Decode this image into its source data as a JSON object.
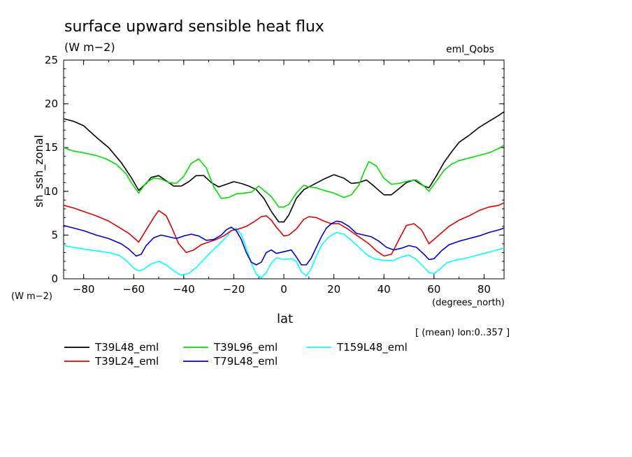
{
  "chart_data": {
    "type": "line",
    "title": "surface upward sensible heat flux",
    "units_label": "(W m−2)",
    "experiment_label": "eml_Qobs",
    "ylabel": "sh_ssh_zonal",
    "y_units": "(W m−2)",
    "xlabel": "lat",
    "x_units": "(degrees_north)",
    "subtitle_note": "[ (mean) lon:0..357 ]",
    "xlim": [
      -88,
      88
    ],
    "ylim": [
      0,
      25
    ],
    "x_ticks": [
      -80,
      -60,
      -40,
      -20,
      0,
      20,
      40,
      60,
      80
    ],
    "y_ticks": [
      0,
      5,
      10,
      15,
      20,
      25
    ],
    "x_tick_labels": [
      "−80",
      "−60",
      "−40",
      "−20",
      "0",
      "20",
      "40",
      "60",
      "80"
    ],
    "y_tick_labels": [
      "0",
      "5",
      "10",
      "15",
      "20",
      "25"
    ],
    "series": [
      {
        "name": "T39L48_eml",
        "color": "#000000",
        "x": [
          -88,
          -84,
          -80,
          -75,
          -70,
          -65,
          -61,
          -58,
          -55,
          -53,
          -50,
          -47,
          -44,
          -41,
          -38,
          -35,
          -32,
          -29,
          -26,
          -23,
          -20,
          -17,
          -14,
          -11,
          -8,
          -5,
          -2,
          0,
          2,
          5,
          8,
          12,
          16,
          20,
          22,
          24,
          27,
          30,
          33,
          36,
          40,
          43,
          46,
          49,
          52,
          56,
          58,
          61,
          64,
          67,
          70,
          74,
          78,
          82,
          86,
          88
        ],
        "y": [
          18.3,
          18.0,
          17.5,
          16.2,
          15.0,
          13.3,
          11.6,
          10.1,
          10.9,
          11.6,
          11.8,
          11.2,
          10.6,
          10.6,
          11.1,
          11.8,
          11.8,
          11.0,
          10.5,
          10.8,
          11.1,
          10.9,
          10.6,
          10.2,
          9.2,
          7.7,
          6.5,
          6.5,
          7.3,
          9.2,
          10.2,
          10.8,
          11.4,
          11.9,
          11.7,
          11.5,
          10.9,
          11.0,
          11.3,
          10.6,
          9.6,
          9.6,
          10.3,
          11.0,
          11.3,
          10.6,
          10.4,
          11.8,
          13.3,
          14.5,
          15.6,
          16.4,
          17.3,
          18.0,
          18.7,
          19.1
        ]
      },
      {
        "name": "T39L96_eml",
        "color": "#00dd00",
        "x": [
          -88,
          -84,
          -80,
          -75,
          -71,
          -67,
          -63,
          -61,
          -58,
          -55,
          -52,
          -49,
          -46,
          -43,
          -40,
          -37,
          -34,
          -31,
          -28,
          -25,
          -22,
          -19,
          -16,
          -13,
          -10,
          -8,
          -5,
          -2,
          0,
          2,
          5,
          8,
          10,
          13,
          16,
          20,
          24,
          27,
          30,
          32,
          34,
          37,
          40,
          43,
          46,
          50,
          53,
          56,
          58,
          61,
          64,
          67,
          70,
          74,
          78,
          82,
          86,
          88
        ],
        "y": [
          15.0,
          14.6,
          14.4,
          14.1,
          13.7,
          13.1,
          12.0,
          11.0,
          9.8,
          11.0,
          11.5,
          11.4,
          11.0,
          10.9,
          11.7,
          13.2,
          13.7,
          12.7,
          10.5,
          9.2,
          9.3,
          9.7,
          9.8,
          9.9,
          10.6,
          10.1,
          9.4,
          8.2,
          8.2,
          8.5,
          9.8,
          10.7,
          10.5,
          10.4,
          10.1,
          9.8,
          9.3,
          9.6,
          10.7,
          12.2,
          13.4,
          12.9,
          11.5,
          10.8,
          10.9,
          11.2,
          11.3,
          10.6,
          10.0,
          11.2,
          12.4,
          13.1,
          13.5,
          13.8,
          14.1,
          14.4,
          14.9,
          15.3
        ]
      },
      {
        "name": "T159L48_eml",
        "color": "#00ffff",
        "x": [
          -88,
          -84,
          -80,
          -75,
          -70,
          -66,
          -63,
          -60,
          -58,
          -56,
          -53,
          -50,
          -47,
          -44,
          -41,
          -38,
          -35,
          -32,
          -29,
          -26,
          -23,
          -21,
          -19,
          -17,
          -15,
          -13,
          -11,
          -9,
          -7,
          -5,
          -3,
          0,
          3,
          5,
          7,
          9,
          11,
          13,
          15,
          18,
          21,
          24,
          27,
          30,
          33,
          36,
          40,
          44,
          47,
          50,
          53,
          56,
          58,
          60,
          62,
          65,
          68,
          72,
          76,
          80,
          84,
          88
        ],
        "y": [
          3.8,
          3.6,
          3.4,
          3.2,
          3.0,
          2.7,
          2.1,
          1.2,
          0.9,
          1.1,
          1.7,
          2.0,
          1.6,
          0.9,
          0.4,
          0.6,
          1.3,
          2.2,
          3.1,
          3.9,
          4.8,
          5.5,
          5.8,
          5.1,
          3.5,
          1.8,
          0.5,
          0.1,
          0.7,
          1.8,
          2.4,
          2.2,
          2.3,
          2.0,
          0.8,
          0.3,
          1.2,
          2.6,
          3.8,
          4.8,
          5.3,
          5.1,
          4.4,
          3.6,
          2.8,
          2.3,
          2.1,
          2.1,
          2.5,
          2.7,
          2.2,
          1.3,
          0.7,
          0.6,
          1.0,
          1.8,
          2.1,
          2.3,
          2.6,
          2.9,
          3.2,
          3.5
        ]
      },
      {
        "name": "T39L24_eml",
        "color": "#dd0000",
        "x": [
          -88,
          -84,
          -80,
          -75,
          -70,
          -66,
          -62,
          -58,
          -55,
          -52,
          -50,
          -47,
          -45,
          -42,
          -39,
          -36,
          -33,
          -30,
          -27,
          -24,
          -21,
          -18,
          -15,
          -12,
          -9,
          -7,
          -5,
          -3,
          0,
          2,
          5,
          8,
          10,
          13,
          16,
          19,
          22,
          25,
          28,
          31,
          34,
          37,
          40,
          43,
          46,
          49,
          52,
          55,
          58,
          62,
          66,
          70,
          74,
          78,
          82,
          86,
          88
        ],
        "y": [
          8.4,
          8.1,
          7.7,
          7.2,
          6.6,
          5.9,
          5.2,
          4.2,
          5.6,
          7.0,
          7.8,
          7.2,
          6.0,
          4.0,
          3.0,
          3.3,
          3.9,
          4.2,
          4.5,
          4.9,
          5.5,
          5.7,
          6.0,
          6.5,
          7.1,
          7.2,
          6.7,
          5.9,
          4.9,
          5.0,
          5.7,
          6.8,
          7.1,
          7.0,
          6.6,
          6.3,
          6.3,
          5.8,
          5.2,
          4.6,
          4.0,
          3.2,
          2.6,
          2.8,
          4.5,
          6.1,
          6.3,
          5.6,
          4.0,
          5.0,
          6.0,
          6.7,
          7.2,
          7.8,
          8.2,
          8.4,
          8.7
        ]
      },
      {
        "name": "T79L48_eml",
        "color": "#0000cc",
        "x": [
          -88,
          -84,
          -80,
          -75,
          -70,
          -65,
          -62,
          -59,
          -57,
          -55,
          -52,
          -49,
          -46,
          -43,
          -40,
          -37,
          -34,
          -31,
          -28,
          -25,
          -23,
          -21,
          -19,
          -17,
          -15,
          -13,
          -11,
          -9,
          -7,
          -5,
          -3,
          0,
          3,
          5,
          7,
          9,
          11,
          13,
          15,
          17,
          19,
          21,
          23,
          26,
          29,
          32,
          35,
          38,
          41,
          44,
          47,
          50,
          53,
          56,
          58,
          60,
          63,
          66,
          70,
          74,
          78,
          82,
          86,
          88
        ],
        "y": [
          6.1,
          5.8,
          5.5,
          5.0,
          4.6,
          4.0,
          3.4,
          2.6,
          2.8,
          3.8,
          4.7,
          5.0,
          4.8,
          4.6,
          4.9,
          5.1,
          4.9,
          4.4,
          4.5,
          5.0,
          5.6,
          5.9,
          5.5,
          4.5,
          3.0,
          1.9,
          1.6,
          1.9,
          3.0,
          3.3,
          2.9,
          3.1,
          3.3,
          2.5,
          1.6,
          1.6,
          2.4,
          3.6,
          4.8,
          5.8,
          6.3,
          6.6,
          6.5,
          6.0,
          5.2,
          5.0,
          4.8,
          4.3,
          3.6,
          3.3,
          3.5,
          3.8,
          3.6,
          2.8,
          2.2,
          2.3,
          3.2,
          3.9,
          4.3,
          4.6,
          4.9,
          5.3,
          5.6,
          5.8
        ]
      }
    ]
  }
}
